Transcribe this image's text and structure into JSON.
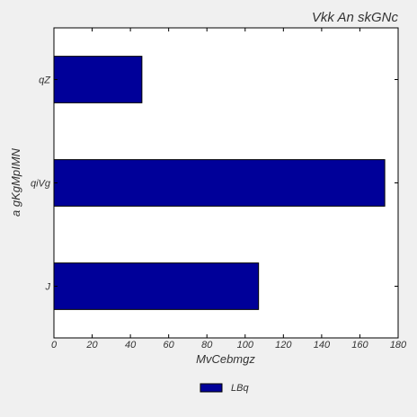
{
  "chart_data": {
    "type": "bar",
    "orientation": "horizontal",
    "title": "Vkk An skGNc",
    "xlabel": "MvCebmgz",
    "ylabel": "a gKgMpIMN",
    "categories": [
      "qZ",
      "qiVg",
      "J"
    ],
    "series": [
      {
        "name": "LBq",
        "values": [
          46,
          173,
          107
        ],
        "color": "#000099"
      }
    ],
    "xlim": [
      0,
      180
    ],
    "xticks": [
      0,
      20,
      40,
      60,
      80,
      100,
      120,
      140,
      160,
      180
    ],
    "grid": false,
    "legend_position": "bottom-center"
  }
}
